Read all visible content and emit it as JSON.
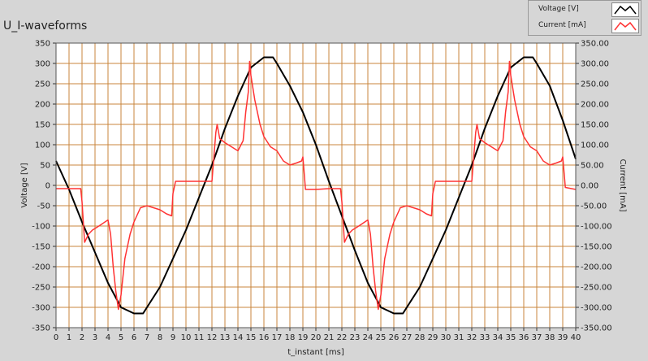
{
  "chart_data": {
    "type": "line",
    "title": "U_I-waveforms",
    "xlabel": "t_instant [ms]",
    "ylabel": "Voltage [V]",
    "y2label": "Current [mA]",
    "xlim": [
      0,
      40
    ],
    "ylim": [
      -350,
      350
    ],
    "y2lim": [
      -350,
      350
    ],
    "x_ticks": [
      "0",
      "1",
      "2",
      "3",
      "4",
      "5",
      "6",
      "7",
      "8",
      "9",
      "10",
      "11",
      "12",
      "13",
      "14",
      "15",
      "16",
      "17",
      "18",
      "19",
      "20",
      "21",
      "22",
      "23",
      "24",
      "25",
      "26",
      "27",
      "28",
      "29",
      "30",
      "31",
      "32",
      "33",
      "34",
      "35",
      "36",
      "37",
      "38",
      "39",
      "40"
    ],
    "y_ticks": [
      "350",
      "300",
      "250",
      "200",
      "150",
      "100",
      "50",
      "0",
      "-50",
      "-100",
      "-150",
      "-200",
      "-250",
      "-300",
      "-350"
    ],
    "y2_ticks": [
      "350.00",
      "300.00",
      "250.00",
      "200.00",
      "150.00",
      "100.00",
      "50.00",
      "0.00",
      "-50.00",
      "-100.00",
      "-150.00",
      "-200.00",
      "-250.00",
      "-300.00",
      "-350.00"
    ],
    "grid": true,
    "legend_position": "top-right",
    "colors": {
      "plot_bg": "#ffffff",
      "grid": "#c8863c",
      "frame_bg": "#d6d6d6"
    },
    "series": [
      {
        "name": "Voltage [V]",
        "color": "#000000",
        "axis": "left",
        "x": [
          0,
          1,
          2,
          3,
          4,
          5,
          6,
          6.7,
          7,
          8,
          9,
          10,
          11,
          12,
          13,
          14,
          15,
          16,
          16.7,
          17,
          18,
          19,
          20,
          21,
          22,
          23,
          24,
          25,
          26,
          26.7,
          27,
          28,
          29,
          30,
          31,
          32,
          33,
          34,
          35,
          36,
          36.7,
          37,
          38,
          39,
          40
        ],
        "y": [
          60,
          -10,
          -90,
          -165,
          -240,
          -300,
          -315,
          -315,
          -300,
          -250,
          -180,
          -110,
          -30,
          50,
          140,
          220,
          290,
          315,
          315,
          300,
          245,
          180,
          100,
          10,
          -75,
          -160,
          -240,
          -300,
          -315,
          -315,
          -300,
          -250,
          -180,
          -110,
          -30,
          50,
          140,
          220,
          290,
          315,
          315,
          300,
          245,
          160,
          65
        ]
      },
      {
        "name": "Current [mA]",
        "color": "#ff3333",
        "axis": "right",
        "x": [
          0,
          1.9,
          2.0,
          2.2,
          2.5,
          2.8,
          3.3,
          4.0,
          4.2,
          4.4,
          4.6,
          4.8,
          5.0,
          5.3,
          5.7,
          6.0,
          6.5,
          7.0,
          7.5,
          8.0,
          8.5,
          8.9,
          9.0,
          9.2,
          10,
          11,
          12.0,
          12.3,
          12.4,
          12.6,
          13.0,
          13.5,
          14,
          14.4,
          14.6,
          14.8,
          14.9,
          15.0,
          15.3,
          15.7,
          16.0,
          16.5,
          17.0,
          17.5,
          18.0,
          18.5,
          18.9,
          19.0,
          19.2,
          20,
          21,
          21.9,
          22.0,
          22.2,
          22.5,
          22.8,
          23.3,
          24.0,
          24.2,
          24.4,
          24.6,
          24.8,
          25.0,
          25.3,
          25.7,
          26.0,
          26.5,
          27.0,
          27.5,
          28.0,
          28.5,
          28.9,
          29.0,
          29.2,
          30,
          31,
          32.0,
          32.3,
          32.4,
          32.6,
          33.0,
          33.5,
          34,
          34.4,
          34.6,
          34.8,
          34.9,
          35.0,
          35.3,
          35.7,
          36.0,
          36.5,
          37.0,
          37.5,
          38.0,
          38.5,
          38.9,
          39.0,
          39.2,
          40
        ],
        "y": [
          -8,
          -8,
          -40,
          -140,
          -120,
          -110,
          -100,
          -85,
          -120,
          -200,
          -260,
          -305,
          -270,
          -180,
          -120,
          -90,
          -55,
          -50,
          -55,
          -60,
          -70,
          -75,
          -20,
          10,
          10,
          10,
          10,
          130,
          150,
          115,
          105,
          95,
          85,
          110,
          180,
          230,
          305,
          270,
          210,
          150,
          120,
          95,
          85,
          60,
          50,
          55,
          60,
          70,
          -10,
          -10,
          -8,
          -8,
          -40,
          -140,
          -120,
          -110,
          -100,
          -85,
          -120,
          -200,
          -260,
          -305,
          -270,
          -180,
          -120,
          -90,
          -55,
          -50,
          -55,
          -60,
          -70,
          -75,
          -20,
          10,
          10,
          10,
          10,
          130,
          150,
          115,
          105,
          95,
          85,
          110,
          180,
          230,
          305,
          270,
          210,
          150,
          120,
          95,
          85,
          60,
          50,
          55,
          60,
          70,
          -5,
          -10
        ]
      }
    ]
  }
}
